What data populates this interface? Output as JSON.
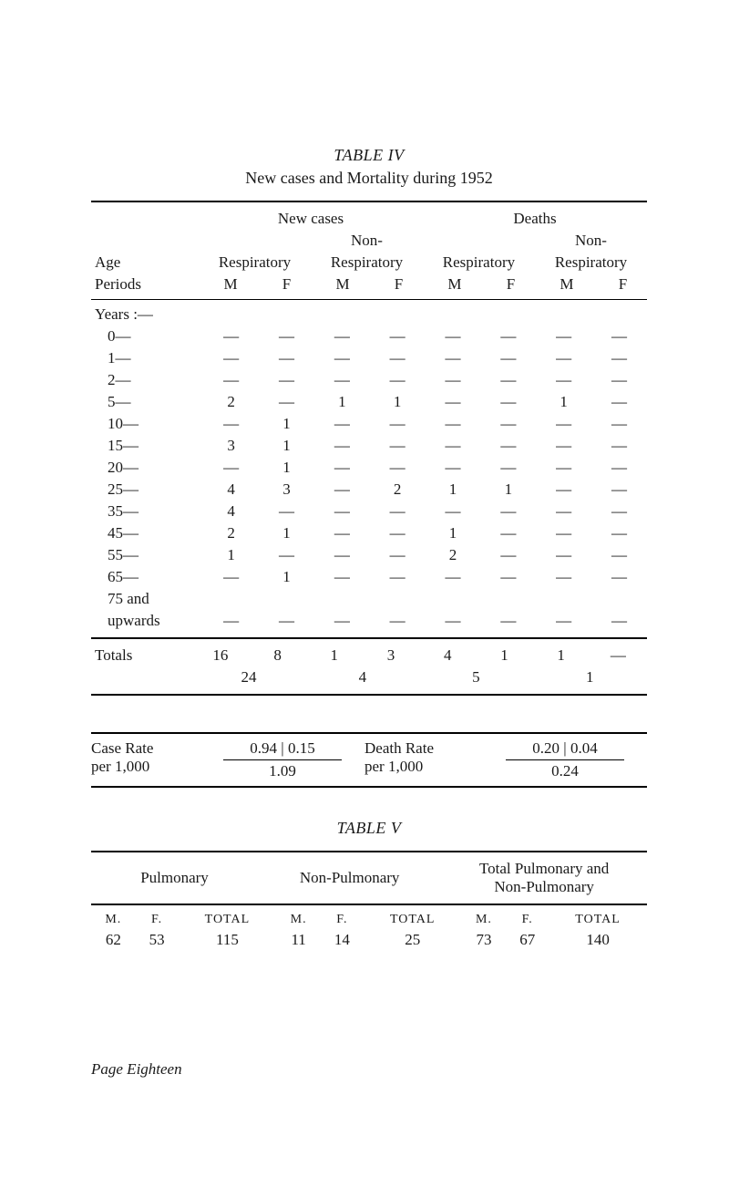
{
  "table4": {
    "label": "TABLE   IV",
    "caption": "New cases and Mortality during 1952",
    "group_headers": {
      "new_cases": "New cases",
      "deaths": "Deaths",
      "non": "Non-",
      "respiratory": "Respiratory"
    },
    "row_header": {
      "age": "Age",
      "periods": "Periods"
    },
    "mf": {
      "m": "M",
      "f": "F"
    },
    "years_label": "Years :—",
    "rows": [
      {
        "label": "0—",
        "c": [
          "—",
          "—",
          "—",
          "—",
          "—",
          "—",
          "—",
          "—"
        ]
      },
      {
        "label": "1—",
        "c": [
          "—",
          "—",
          "—",
          "—",
          "—",
          "—",
          "—",
          "—"
        ]
      },
      {
        "label": "2—",
        "c": [
          "—",
          "—",
          "—",
          "—",
          "—",
          "—",
          "—",
          "—"
        ]
      },
      {
        "label": "5—",
        "c": [
          "2",
          "—",
          "1",
          "1",
          "—",
          "—",
          "1",
          "—"
        ]
      },
      {
        "label": "10—",
        "c": [
          "—",
          "1",
          "—",
          "—",
          "—",
          "—",
          "—",
          "—"
        ]
      },
      {
        "label": "15—",
        "c": [
          "3",
          "1",
          "—",
          "—",
          "—",
          "—",
          "—",
          "—"
        ]
      },
      {
        "label": "20—",
        "c": [
          "—",
          "1",
          "—",
          "—",
          "—",
          "—",
          "—",
          "—"
        ]
      },
      {
        "label": "25—",
        "c": [
          "4",
          "3",
          "—",
          "2",
          "1",
          "1",
          "—",
          "—"
        ]
      },
      {
        "label": "35—",
        "c": [
          "4",
          "—",
          "—",
          "—",
          "—",
          "—",
          "—",
          "—"
        ]
      },
      {
        "label": "45—",
        "c": [
          "2",
          "1",
          "—",
          "—",
          "1",
          "—",
          "—",
          "—"
        ]
      },
      {
        "label": "55—",
        "c": [
          "1",
          "—",
          "—",
          "—",
          "2",
          "—",
          "—",
          "—"
        ]
      },
      {
        "label": "65—",
        "c": [
          "—",
          "1",
          "—",
          "—",
          "—",
          "—",
          "—",
          "—"
        ]
      },
      {
        "label": "75 and",
        "c": [
          "",
          "",
          "",
          "",
          "",
          "",
          "",
          ""
        ]
      },
      {
        "label": "upwards",
        "c": [
          "—",
          "—",
          "—",
          "—",
          "—",
          "—",
          "—",
          "—"
        ]
      }
    ],
    "totals": {
      "label": "Totals",
      "c": [
        "16",
        "8",
        "1",
        "3",
        "4",
        "1",
        "1",
        "—"
      ],
      "sums": [
        "24",
        "4",
        "5",
        "1"
      ]
    }
  },
  "case_rate": {
    "left_label_1": "Case Rate",
    "left_label_2": "per 1,000",
    "left_top": "0.94   |   0.15",
    "left_bot": "1.09",
    "mid_label_1": "Death Rate",
    "mid_label_2": "per 1,000",
    "right_top": "0.20   |   0.04",
    "right_bot": "0.24"
  },
  "table5": {
    "label": "TABLE   V",
    "headers": {
      "pulmonary": "Pulmonary",
      "non_pulmonary": "Non-Pulmonary",
      "total_pn": "Total Pulmonary and",
      "total_pn2": "Non-Pulmonary"
    },
    "sub": {
      "m": "M.",
      "f": "F.",
      "total": "TOTAL"
    },
    "row": {
      "p_m": "62",
      "p_f": "53",
      "p_t": "115",
      "n_m": "11",
      "n_f": "14",
      "n_t": "25",
      "t_m": "73",
      "t_f": "67",
      "t_t": "140"
    }
  },
  "footer": "Page Eighteen"
}
